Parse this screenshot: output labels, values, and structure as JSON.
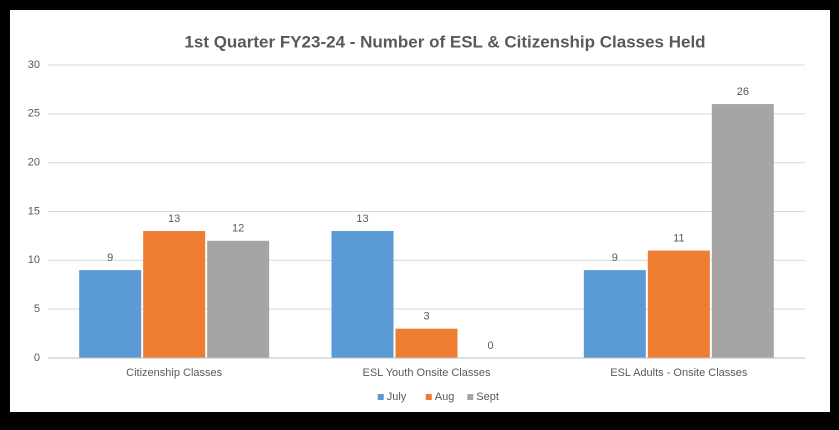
{
  "chart_data": {
    "type": "bar",
    "title": "1st Quarter FY23-24 - Number of ESL & Citizenship Classes Held",
    "categories": [
      "Citizenship Classes",
      "ESL Youth Onsite Classes",
      "ESL Adults - Onsite Classes"
    ],
    "series": [
      {
        "name": "July",
        "color": "#5b9bd5",
        "values": [
          9,
          13,
          9
        ]
      },
      {
        "name": "Aug",
        "color": "#ed7d31",
        "values": [
          13,
          3,
          11
        ]
      },
      {
        "name": "Sept",
        "color": "#a5a5a5",
        "values": [
          12,
          0,
          26
        ]
      }
    ],
    "ylim": [
      0,
      30
    ],
    "yticks": [
      0,
      5,
      10,
      15,
      20,
      25,
      30
    ],
    "grid": true,
    "legend": "bottom"
  }
}
